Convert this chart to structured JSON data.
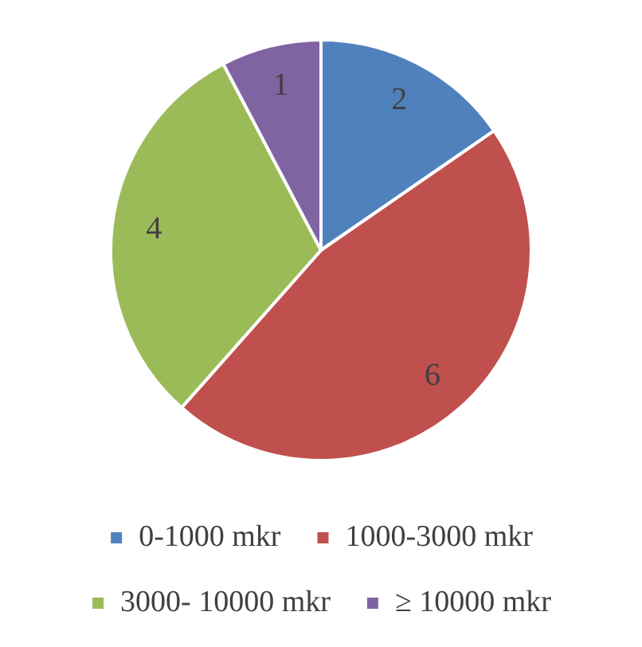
{
  "chart_data": {
    "type": "pie",
    "categories": [
      "0-1000 mkr",
      "1000-3000 mkr",
      "3000- 10000 mkr",
      "≥ 10000 mkr"
    ],
    "values": [
      2,
      6,
      4,
      1
    ],
    "colors": [
      "#4f81bd",
      "#c0504d",
      "#9bbb59",
      "#8064a2"
    ],
    "data_labels": true,
    "legend": "bottom"
  }
}
